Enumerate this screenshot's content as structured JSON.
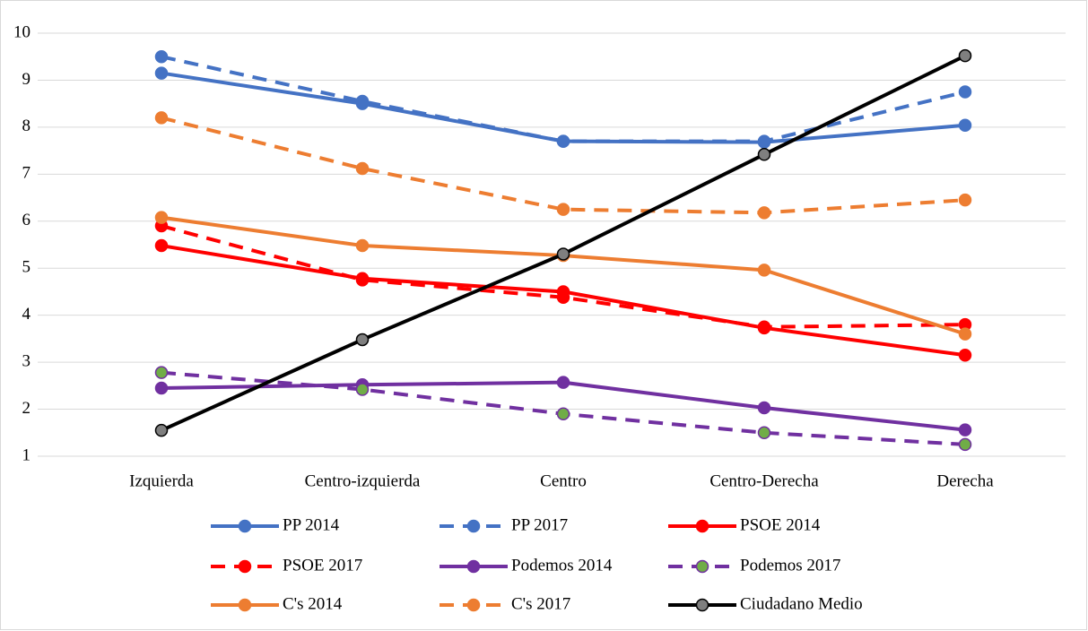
{
  "chart_data": {
    "type": "line",
    "categories": [
      "Izquierda",
      "Centro-izquierda",
      "Centro",
      "Centro-Derecha",
      "Derecha"
    ],
    "ylim": [
      1,
      10
    ],
    "yticks": [
      1,
      2,
      3,
      4,
      5,
      6,
      7,
      8,
      9,
      10
    ],
    "grid": true,
    "legend": "bottom",
    "series": [
      {
        "name": "PP 2014",
        "color": "#4472c4",
        "dashed": false,
        "values": [
          9.15,
          8.5,
          7.7,
          7.68,
          8.04
        ]
      },
      {
        "name": "PP 2017",
        "color": "#4472c4",
        "dashed": true,
        "values": [
          9.5,
          8.55,
          7.7,
          7.7,
          8.75
        ]
      },
      {
        "name": "PSOE 2014",
        "color": "#ff0000",
        "dashed": false,
        "values": [
          5.48,
          4.78,
          4.5,
          3.73,
          3.15
        ]
      },
      {
        "name": "PSOE 2017",
        "color": "#ff0000",
        "dashed": true,
        "values": [
          5.9,
          4.75,
          4.38,
          3.75,
          3.8
        ]
      },
      {
        "name": "Podemos 2014",
        "color": "#7030a0",
        "dashed": false,
        "values": [
          2.45,
          2.52,
          2.57,
          2.03,
          1.56
        ]
      },
      {
        "name": "Podemos 2017",
        "color": "#7030a0",
        "marker_color": "#70ad47",
        "dashed": true,
        "values": [
          2.78,
          2.42,
          1.9,
          1.5,
          1.25
        ]
      },
      {
        "name": "C's 2014",
        "color": "#ed7d31",
        "dashed": false,
        "values": [
          6.08,
          5.48,
          5.27,
          4.96,
          3.6
        ]
      },
      {
        "name": "C's 2017",
        "color": "#ed7d31",
        "dashed": true,
        "values": [
          8.2,
          7.12,
          6.25,
          6.18,
          6.45
        ]
      },
      {
        "name": "Ciudadano Medio",
        "color": "#000000",
        "marker_color": "#7f7f7f",
        "dashed": false,
        "values": [
          1.55,
          3.48,
          5.3,
          7.42,
          9.52
        ]
      }
    ]
  }
}
